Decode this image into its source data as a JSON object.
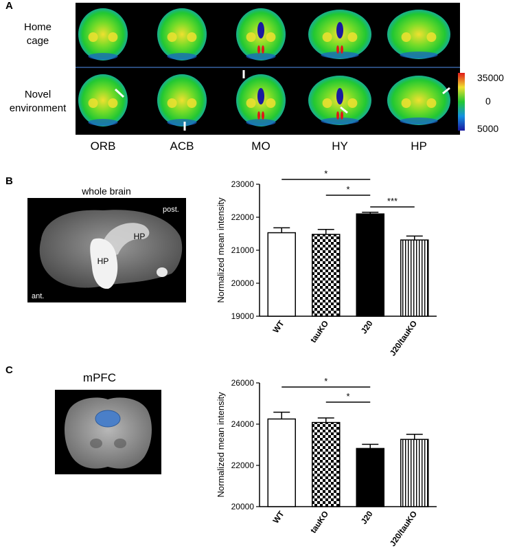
{
  "panel_a": {
    "letter": "A",
    "rows": [
      {
        "label_lines": [
          "Home",
          "cage"
        ]
      },
      {
        "label_lines": [
          "Novel",
          "environment"
        ]
      }
    ],
    "regions": [
      "ORB",
      "ACB",
      "MO",
      "HY",
      "HP"
    ],
    "colorscale": {
      "max": "35000",
      "mid": "0",
      "min": "5000"
    },
    "colors": {
      "low": "#1a1aa0",
      "mid": "#22c832",
      "high": "#e01818",
      "background": "#000000"
    }
  },
  "panel_b": {
    "letter": "B",
    "image": {
      "title": "whole brain",
      "labels": {
        "post": "post.",
        "ant": "ant.",
        "hp1": "HP",
        "hp2": "HP"
      }
    },
    "chart_data": {
      "type": "bar",
      "categories": [
        "WT",
        "tauKO",
        "J20",
        "J20/tauKO"
      ],
      "values": [
        21530,
        21480,
        22100,
        21310
      ],
      "errors": [
        150,
        150,
        50,
        120
      ],
      "patterns": [
        "open",
        "checkered",
        "solid",
        "striped"
      ],
      "ylabel": "Normalized mean intensity",
      "ylim": [
        19000,
        23000
      ],
      "yticks": [
        19000,
        20000,
        21000,
        22000,
        23000
      ],
      "significance": [
        {
          "from": 0,
          "to": 2,
          "label": "*"
        },
        {
          "from": 1,
          "to": 2,
          "label": "*"
        },
        {
          "from": 2,
          "to": 3,
          "label": "***"
        }
      ]
    }
  },
  "panel_c": {
    "letter": "C",
    "image": {
      "title": "mPFC"
    },
    "roi_color": "#4a7fc8",
    "chart_data": {
      "type": "bar",
      "categories": [
        "WT",
        "tauKO",
        "J20",
        "J20/tauKO"
      ],
      "values": [
        24250,
        24080,
        22820,
        23260
      ],
      "errors": [
        330,
        220,
        200,
        250
      ],
      "patterns": [
        "open",
        "checkered",
        "solid",
        "striped"
      ],
      "ylabel": "Normalized mean intensity",
      "ylim": [
        20000,
        26000
      ],
      "yticks": [
        20000,
        22000,
        24000,
        26000
      ],
      "significance": [
        {
          "from": 0,
          "to": 2,
          "label": "*"
        },
        {
          "from": 1,
          "to": 2,
          "label": "*"
        }
      ]
    }
  }
}
